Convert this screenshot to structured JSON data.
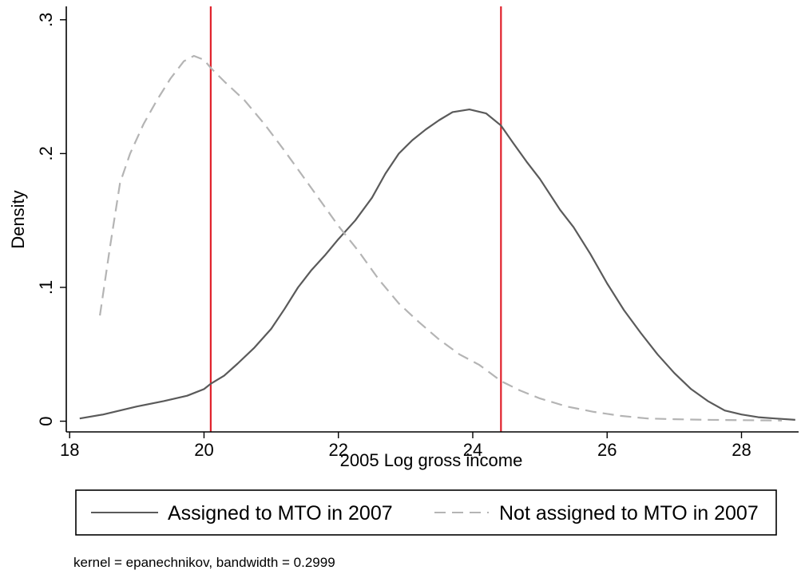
{
  "chart_data": {
    "type": "line",
    "title": "",
    "xlabel": "2005 Log gross income",
    "ylabel": "Density",
    "xlim": [
      17.95,
      28.85
    ],
    "ylim": [
      -0.008,
      0.31
    ],
    "x_ticks": [
      18,
      20,
      22,
      24,
      26,
      28
    ],
    "y_ticks": [
      0,
      0.1,
      0.2,
      0.3
    ],
    "x_tick_labels": [
      "18",
      "20",
      "22",
      "24",
      "26",
      "28"
    ],
    "y_tick_labels": [
      "0",
      ".1",
      ".2",
      ".3"
    ],
    "grid": false,
    "legend_position": "bottom",
    "reference_lines": {
      "x": [
        20.1,
        24.42
      ],
      "color": "#e0202a"
    },
    "series": [
      {
        "name": "Assigned to MTO in 2007",
        "style": "solid",
        "color": "#5a5a5a",
        "points": [
          [
            18.15,
            0.002
          ],
          [
            18.5,
            0.005
          ],
          [
            19.0,
            0.011
          ],
          [
            19.4,
            0.015
          ],
          [
            19.75,
            0.019
          ],
          [
            20.0,
            0.024
          ],
          [
            20.1,
            0.028
          ],
          [
            20.3,
            0.034
          ],
          [
            20.5,
            0.043
          ],
          [
            20.75,
            0.055
          ],
          [
            21.0,
            0.069
          ],
          [
            21.2,
            0.084
          ],
          [
            21.4,
            0.1
          ],
          [
            21.6,
            0.113
          ],
          [
            21.8,
            0.124
          ],
          [
            22.0,
            0.136
          ],
          [
            22.25,
            0.15
          ],
          [
            22.5,
            0.167
          ],
          [
            22.7,
            0.185
          ],
          [
            22.9,
            0.2
          ],
          [
            23.1,
            0.21
          ],
          [
            23.3,
            0.218
          ],
          [
            23.5,
            0.225
          ],
          [
            23.7,
            0.231
          ],
          [
            23.95,
            0.233
          ],
          [
            24.2,
            0.23
          ],
          [
            24.42,
            0.221
          ],
          [
            24.6,
            0.208
          ],
          [
            24.8,
            0.194
          ],
          [
            25.0,
            0.181
          ],
          [
            25.3,
            0.158
          ],
          [
            25.5,
            0.145
          ],
          [
            25.75,
            0.125
          ],
          [
            26.0,
            0.103
          ],
          [
            26.25,
            0.083
          ],
          [
            26.5,
            0.066
          ],
          [
            26.75,
            0.05
          ],
          [
            27.0,
            0.036
          ],
          [
            27.25,
            0.024
          ],
          [
            27.5,
            0.015
          ],
          [
            27.75,
            0.008
          ],
          [
            28.0,
            0.005
          ],
          [
            28.25,
            0.003
          ],
          [
            28.5,
            0.002
          ],
          [
            28.8,
            0.001
          ]
        ]
      },
      {
        "name": "Not assigned to MTO in 2007",
        "style": "dashed",
        "color": "#b4b4b4",
        "points": [
          [
            18.45,
            0.079
          ],
          [
            18.6,
            0.13
          ],
          [
            18.75,
            0.178
          ],
          [
            18.9,
            0.2
          ],
          [
            19.1,
            0.222
          ],
          [
            19.3,
            0.24
          ],
          [
            19.5,
            0.256
          ],
          [
            19.7,
            0.269
          ],
          [
            19.85,
            0.273
          ],
          [
            20.0,
            0.27
          ],
          [
            20.1,
            0.264
          ],
          [
            20.3,
            0.254
          ],
          [
            20.6,
            0.24
          ],
          [
            20.9,
            0.222
          ],
          [
            21.2,
            0.202
          ],
          [
            21.5,
            0.181
          ],
          [
            21.8,
            0.16
          ],
          [
            22.0,
            0.146
          ],
          [
            22.3,
            0.127
          ],
          [
            22.6,
            0.106
          ],
          [
            22.9,
            0.088
          ],
          [
            23.2,
            0.074
          ],
          [
            23.5,
            0.061
          ],
          [
            23.8,
            0.05
          ],
          [
            24.1,
            0.042
          ],
          [
            24.42,
            0.03
          ],
          [
            24.7,
            0.023
          ],
          [
            25.0,
            0.017
          ],
          [
            25.4,
            0.011
          ],
          [
            25.8,
            0.007
          ],
          [
            26.2,
            0.004
          ],
          [
            26.6,
            0.002
          ],
          [
            27.0,
            0.0015
          ],
          [
            27.5,
            0.001
          ],
          [
            28.0,
            0.0008
          ],
          [
            28.6,
            0.0005
          ]
        ]
      }
    ],
    "note": "kernel = epanechnikov, bandwidth = 0.2999"
  }
}
